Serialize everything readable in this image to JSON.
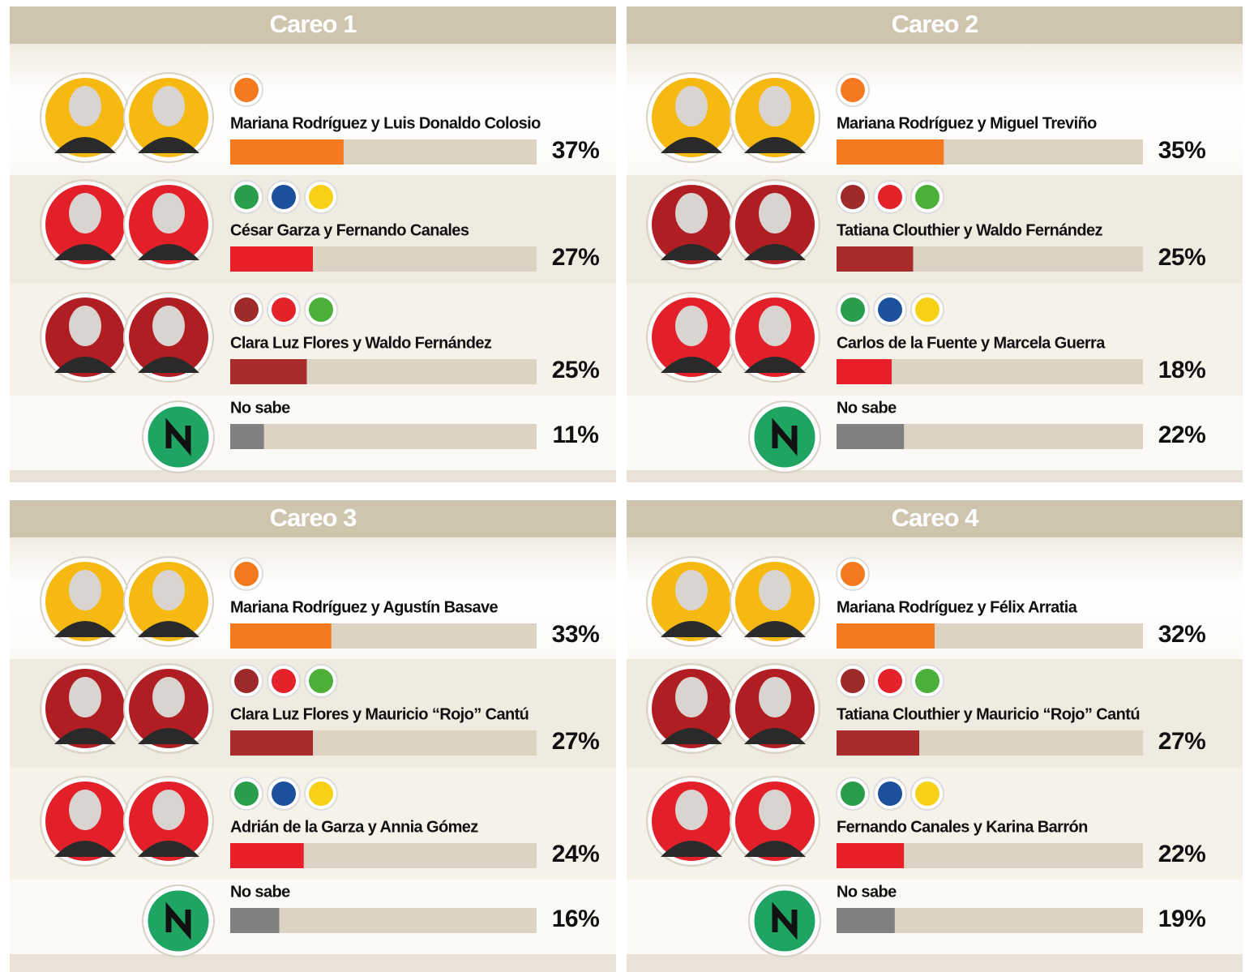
{
  "chart_data": [
    {
      "type": "bar",
      "title": "Careo 1",
      "categories": [
        "Mariana Rodríguez y Luis Donaldo Colosio",
        "César Garza y Fernando Canales",
        "Clara Luz Flores y Waldo Fernández",
        "No sabe"
      ],
      "values": [
        37,
        27,
        25,
        11
      ],
      "value_labels": [
        "37%",
        "27%",
        "25%",
        "11%"
      ],
      "colors": [
        "#f47920",
        "#e8202a",
        "#a82c2c",
        "#808080"
      ],
      "xlim": [
        0,
        100
      ]
    },
    {
      "type": "bar",
      "title": "Careo 2",
      "categories": [
        "Mariana Rodríguez y Miguel Treviño",
        "Tatiana Clouthier y Waldo Fernández",
        "Carlos de la Fuente y Marcela Guerra",
        "No sabe"
      ],
      "values": [
        35,
        25,
        18,
        22
      ],
      "value_labels": [
        "35%",
        "25%",
        "18%",
        "22%"
      ],
      "colors": [
        "#f47920",
        "#a82c2c",
        "#e8202a",
        "#808080"
      ],
      "xlim": [
        0,
        100
      ]
    },
    {
      "type": "bar",
      "title": "Careo 3",
      "categories": [
        "Mariana Rodríguez y Agustín Basave",
        "Clara Luz Flores y Mauricio “Rojo” Cantú",
        "Adrián de la Garza y Annia Gómez",
        "No sabe"
      ],
      "values": [
        33,
        27,
        24,
        16
      ],
      "value_labels": [
        "33%",
        "27%",
        "24%",
        "16%"
      ],
      "colors": [
        "#f47920",
        "#a82c2c",
        "#e8202a",
        "#808080"
      ],
      "xlim": [
        0,
        100
      ]
    },
    {
      "type": "bar",
      "title": "Careo 4",
      "categories": [
        "Mariana Rodríguez y Félix Arratia",
        "Tatiana Clouthier y Mauricio “Rojo” Cantú",
        "Fernando Canales y Karina Barrón",
        "No sabe"
      ],
      "values": [
        32,
        27,
        22,
        19
      ],
      "value_labels": [
        "32%",
        "27%",
        "22%",
        "19%"
      ],
      "colors": [
        "#f47920",
        "#a82c2c",
        "#e8202a",
        "#808080"
      ],
      "xlim": [
        0,
        100
      ]
    }
  ]
}
